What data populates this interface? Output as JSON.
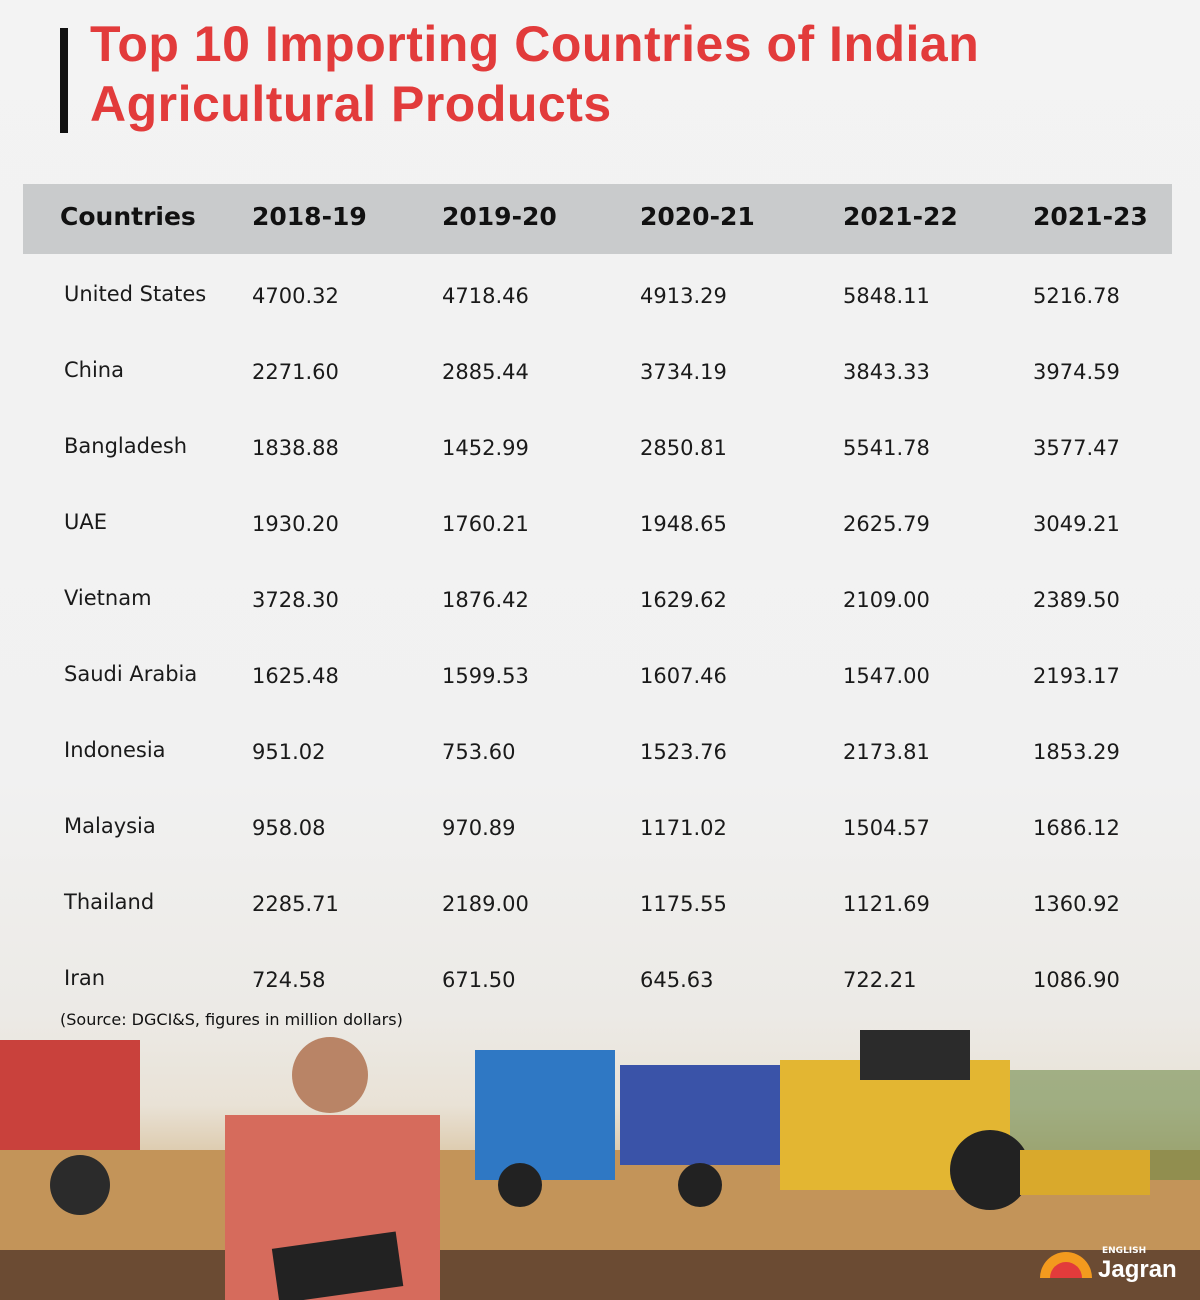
{
  "header": {
    "title": "Top 10 Importing Countries of Indian Agricultural Products"
  },
  "table": {
    "columns": [
      "Countries",
      "2018-19",
      "2019-20",
      "2020-21",
      "2021-22",
      "2021-23"
    ],
    "rows": [
      [
        "United States",
        "4700.32",
        "4718.46",
        "4913.29",
        "5848.11",
        "5216.78"
      ],
      [
        "China",
        "2271.60",
        "2885.44",
        "3734.19",
        "3843.33",
        "3974.59"
      ],
      [
        "Bangladesh",
        "1838.88",
        "1452.99",
        "2850.81",
        "5541.78",
        "3577.47"
      ],
      [
        "UAE",
        "1930.20",
        "1760.21",
        "1948.65",
        "2625.79",
        "3049.21"
      ],
      [
        "Vietnam",
        "3728.30",
        "1876.42",
        "1629.62",
        "2109.00",
        "2389.50"
      ],
      [
        "Saudi Arabia",
        "1625.48",
        "1599.53",
        "1607.46",
        "1547.00",
        "2193.17"
      ],
      [
        "Indonesia",
        "951.02",
        "753.60",
        "1523.76",
        "2173.81",
        "1853.29"
      ],
      [
        "Malaysia",
        "958.08",
        "970.89",
        "1171.02",
        "1504.57",
        "1686.12"
      ],
      [
        "Thailand",
        "2285.71",
        "2189.00",
        "1175.55",
        "1121.69",
        "1360.92"
      ],
      [
        "Iran",
        "724.58",
        "671.50",
        "645.63",
        "722.21",
        "1086.90"
      ]
    ]
  },
  "source": "(Source: DGCI&S, figures in million dollars)",
  "logo": {
    "small": "ENGLISH",
    "name": "Jagran"
  }
}
